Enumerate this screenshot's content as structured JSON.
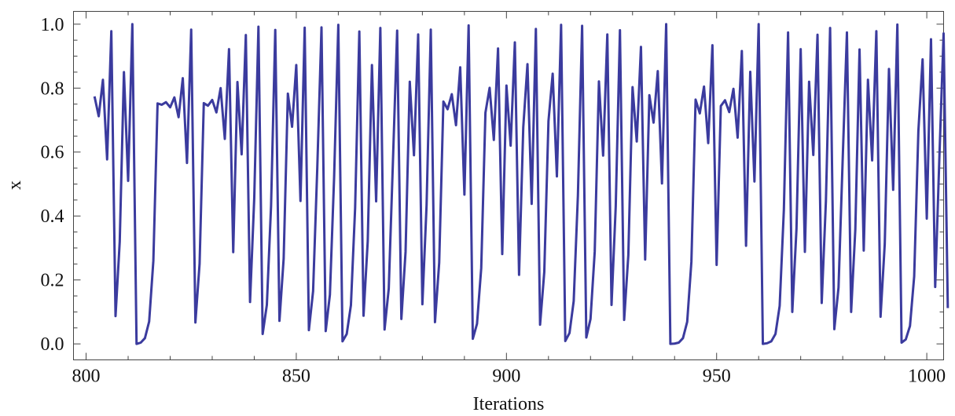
{
  "chart_data": {
    "type": "line",
    "xlabel": "Iterations",
    "ylabel": "x",
    "xlim": [
      797,
      1004
    ],
    "ylim": [
      -0.05,
      1.04
    ],
    "xticks": [
      800,
      850,
      900,
      950,
      1000
    ],
    "yticks": [
      0.0,
      0.2,
      0.4,
      0.6,
      0.8,
      1.0
    ],
    "xtick_labels": [
      "800",
      "850",
      "900",
      "950",
      "1000"
    ],
    "ytick_labels": [
      "0.0",
      "0.2",
      "0.4",
      "0.6",
      "0.8",
      "1.0"
    ],
    "grid": false,
    "line_color": "#3b3b9e",
    "series": [
      {
        "x_start": 802,
        "values": [
          0.774,
          0.712,
          0.826,
          0.577,
          0.978,
          0.087,
          0.32,
          0.85,
          0.51,
          1.0,
          0.0,
          0.004,
          0.018,
          0.07,
          0.26,
          0.752,
          0.748,
          0.756,
          0.74,
          0.771,
          0.709,
          0.831,
          0.566,
          0.983,
          0.067,
          0.251,
          0.753,
          0.745,
          0.763,
          0.724,
          0.8,
          0.641,
          0.922,
          0.287,
          0.819,
          0.593,
          0.966,
          0.131,
          0.456,
          0.992,
          0.031,
          0.122,
          0.431,
          0.982,
          0.072,
          0.267,
          0.783,
          0.679,
          0.872,
          0.447,
          0.989,
          0.043,
          0.165,
          0.551,
          0.99,
          0.04,
          0.154,
          0.521,
          0.998,
          0.008,
          0.031,
          0.121,
          0.425,
          0.977,
          0.088,
          0.321,
          0.872,
          0.446,
          0.988,
          0.045,
          0.173,
          0.572,
          0.98,
          0.078,
          0.288,
          0.82,
          0.59,
          0.968,
          0.124,
          0.434,
          0.983,
          0.068,
          0.254,
          0.758,
          0.734,
          0.781,
          0.684,
          0.865,
          0.467,
          0.996,
          0.016,
          0.063,
          0.237,
          0.723,
          0.801,
          0.638,
          0.924,
          0.281,
          0.808,
          0.62,
          0.943,
          0.216,
          0.677,
          0.875,
          0.438,
          0.985,
          0.06,
          0.225,
          0.697,
          0.845,
          0.524,
          0.998,
          0.009,
          0.034,
          0.134,
          0.464,
          0.995,
          0.02,
          0.078,
          0.288,
          0.821,
          0.589,
          0.968,
          0.122,
          0.43,
          0.981,
          0.075,
          0.278,
          0.803,
          0.633,
          0.929,
          0.264,
          0.778,
          0.692,
          0.853,
          0.502,
          1.0,
          0.0,
          0.001,
          0.004,
          0.018,
          0.069,
          0.257,
          0.764,
          0.721,
          0.805,
          0.628,
          0.934,
          0.247,
          0.744,
          0.762,
          0.725,
          0.798,
          0.645,
          0.916,
          0.307,
          0.851,
          0.508,
          1.0,
          0.0,
          0.002,
          0.008,
          0.031,
          0.119,
          0.42,
          0.974,
          0.1,
          0.36,
          0.922,
          0.288,
          0.82,
          0.591,
          0.967,
          0.128,
          0.446,
          0.988,
          0.046,
          0.176,
          0.58,
          0.974,
          0.1,
          0.359,
          0.921,
          0.292,
          0.826,
          0.574,
          0.978,
          0.085,
          0.313,
          0.86,
          0.482,
          0.999,
          0.004,
          0.014,
          0.056,
          0.211,
          0.666,
          0.89,
          0.392,
          0.953,
          0.178,
          0.585,
          0.971,
          0.112
        ]
      }
    ]
  }
}
